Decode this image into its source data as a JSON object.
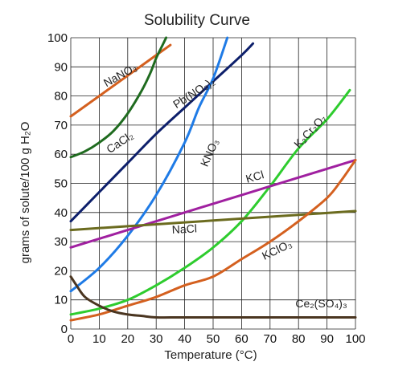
{
  "chart_data": {
    "type": "line",
    "title": "Solubility Curve",
    "xlabel": "Temperature (°C)",
    "ylabel": "grams of solute/100 g H₂O",
    "xlim": [
      0,
      100
    ],
    "ylim": [
      0,
      100
    ],
    "xticks": [
      0,
      10,
      20,
      30,
      40,
      50,
      60,
      70,
      80,
      90,
      100
    ],
    "yticks": [
      0,
      10,
      20,
      30,
      40,
      50,
      60,
      70,
      80,
      90,
      100
    ],
    "grid": true,
    "series": [
      {
        "name": "NaNO₃",
        "color": "#d4601f",
        "x": [
          0,
          10,
          20,
          30,
          35
        ],
        "y": [
          73,
          80,
          87,
          94,
          97.5
        ]
      },
      {
        "name": "CaCl₂",
        "color": "#1f6b1f",
        "x": [
          0,
          5,
          10,
          15,
          20,
          25,
          28,
          30,
          32,
          33.5
        ],
        "y": [
          59,
          61,
          64,
          68,
          74,
          82,
          88,
          93,
          97,
          100
        ]
      },
      {
        "name": "Pb(NO₃)₂",
        "color": "#0d1f6b",
        "x": [
          0,
          10,
          20,
          30,
          40,
          50,
          60,
          64
        ],
        "y": [
          37,
          47,
          57,
          67,
          76,
          85,
          94,
          98
        ]
      },
      {
        "name": "KNO₃",
        "color": "#1f7be6",
        "x": [
          0,
          10,
          20,
          30,
          40,
          45,
          50,
          55
        ],
        "y": [
          13,
          21,
          32,
          46,
          64,
          76,
          86,
          100
        ]
      },
      {
        "name": "K₂Cr₂O₇",
        "color": "#2ecc2e",
        "x": [
          0,
          10,
          20,
          30,
          40,
          50,
          60,
          70,
          80,
          90,
          98
        ],
        "y": [
          5,
          7,
          10,
          15,
          21,
          28,
          37,
          49,
          62,
          72,
          82
        ]
      },
      {
        "name": "KCl",
        "color": "#a020a0",
        "x": [
          0,
          20,
          40,
          60,
          80,
          100
        ],
        "y": [
          28,
          34,
          40,
          46,
          52,
          58
        ]
      },
      {
        "name": "NaCl",
        "color": "#6b6b1f",
        "x": [
          0,
          20,
          40,
          60,
          80,
          100
        ],
        "y": [
          34,
          35.3,
          36.6,
          37.9,
          39.2,
          40.5
        ]
      },
      {
        "name": "KClO₃",
        "color": "#d4601f",
        "x": [
          0,
          10,
          20,
          30,
          40,
          50,
          60,
          70,
          80,
          90,
          95,
          100
        ],
        "y": [
          3,
          5,
          8,
          11,
          15,
          18,
          24,
          30,
          37,
          45,
          51,
          58
        ]
      },
      {
        "name": "Ce₂(SO₄)₃",
        "color": "#4a3520",
        "x": [
          0,
          2,
          5,
          10,
          15,
          20,
          25,
          30,
          40,
          60,
          80,
          100
        ],
        "y": [
          18,
          15,
          11,
          8,
          6,
          5,
          4.5,
          4,
          4,
          4,
          4,
          4
        ]
      }
    ]
  }
}
